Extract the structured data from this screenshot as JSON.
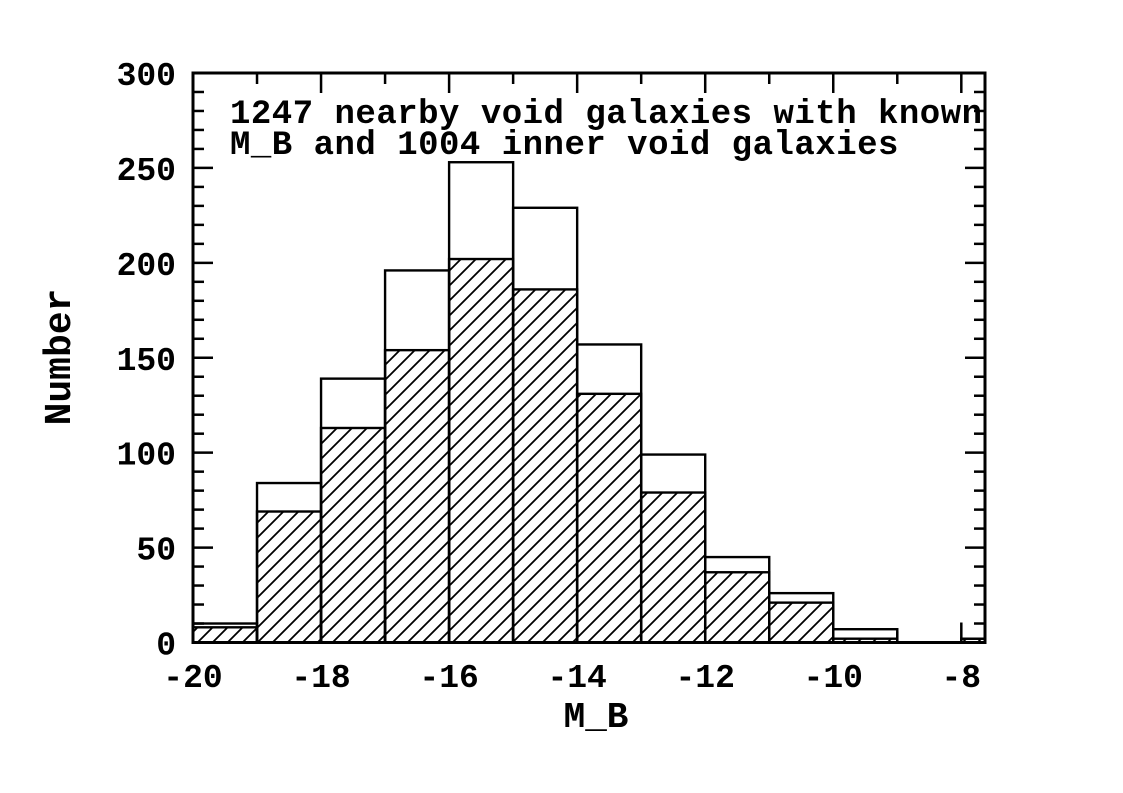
{
  "figure": {
    "background": "#ffffff",
    "ink_color": "#000000"
  },
  "chart_data": {
    "type": "bar",
    "subtype": "histogram-steps-overlaid",
    "title": "1247 nearby void galaxies with known M_B and 1004 inner void galaxies",
    "title_line1": "1247 nearby void galaxies with known",
    "title_line2": "M_B and 1004 inner void galaxies",
    "xlabel": "M_B",
    "ylabel": "Number",
    "bin_edges": [
      -20,
      -19,
      -18,
      -17,
      -16,
      -15,
      -14,
      -13,
      -12,
      -11,
      -10,
      -9,
      -8,
      -7
    ],
    "series": [
      {
        "name": "nearby void galaxies with known M_B",
        "style": "outline",
        "total": 1247,
        "values": [
          10,
          84,
          139,
          196,
          253,
          229,
          157,
          99,
          45,
          26,
          7,
          0,
          2
        ]
      },
      {
        "name": "inner void galaxies",
        "style": "hatched",
        "total": 1004,
        "values": [
          8,
          69,
          113,
          154,
          202,
          186,
          131,
          79,
          37,
          21,
          2,
          0,
          2
        ]
      }
    ],
    "xlim": [
      -20,
      -7.63
    ],
    "ylim": [
      0,
      300
    ],
    "x_major_ticks": [
      -20,
      -18,
      -16,
      -14,
      -12,
      -10,
      -8
    ],
    "x_major_tick_labels": [
      "-20",
      "-18",
      "-16",
      "-14",
      "-12",
      "-10",
      "-8"
    ],
    "x_minor_tick_step": 1,
    "y_major_ticks": [
      0,
      50,
      100,
      150,
      200,
      250,
      300
    ],
    "y_major_tick_labels": [
      "0",
      "50",
      "100",
      "150",
      "200",
      "250",
      "300"
    ],
    "y_minor_tick_step": 10,
    "grid": false,
    "legend_position": "none",
    "axis_color": "#000000",
    "bar_color": "#000000",
    "hatch_direction": "/",
    "background": "#ffffff"
  }
}
